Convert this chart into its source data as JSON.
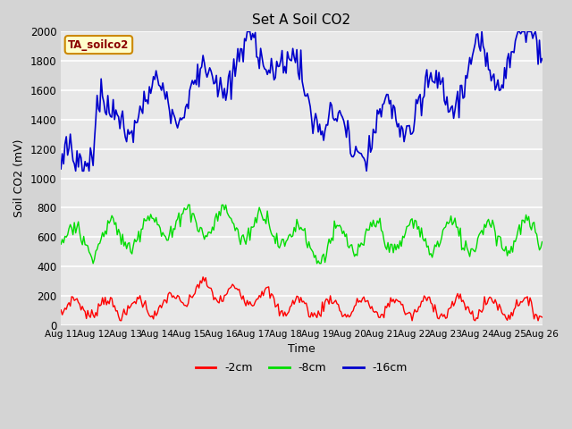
{
  "title": "Set A Soil CO2",
  "xlabel": "Time",
  "ylabel": "Soil CO2 (mV)",
  "ylim": [
    0,
    2000
  ],
  "fig_bg": "#d4d4d4",
  "plot_bg": "#e8e8e8",
  "legend_label": "TA_soilco2",
  "legend_fg": "#8b0000",
  "legend_bg": "#ffffcc",
  "legend_border": "#cc8800",
  "color_red": "#ff0000",
  "color_green": "#00dd00",
  "color_blue": "#0000cc",
  "x_ticks": [
    "Aug 11",
    "Aug 12",
    "Aug 13",
    "Aug 14",
    "Aug 15",
    "Aug 16",
    "Aug 17",
    "Aug 18",
    "Aug 19",
    "Aug 20",
    "Aug 21",
    "Aug 22",
    "Aug 23",
    "Aug 24",
    "Aug 25",
    "Aug 26"
  ],
  "yticks": [
    0,
    200,
    400,
    600,
    800,
    1000,
    1200,
    1400,
    1600,
    1800,
    2000
  ]
}
